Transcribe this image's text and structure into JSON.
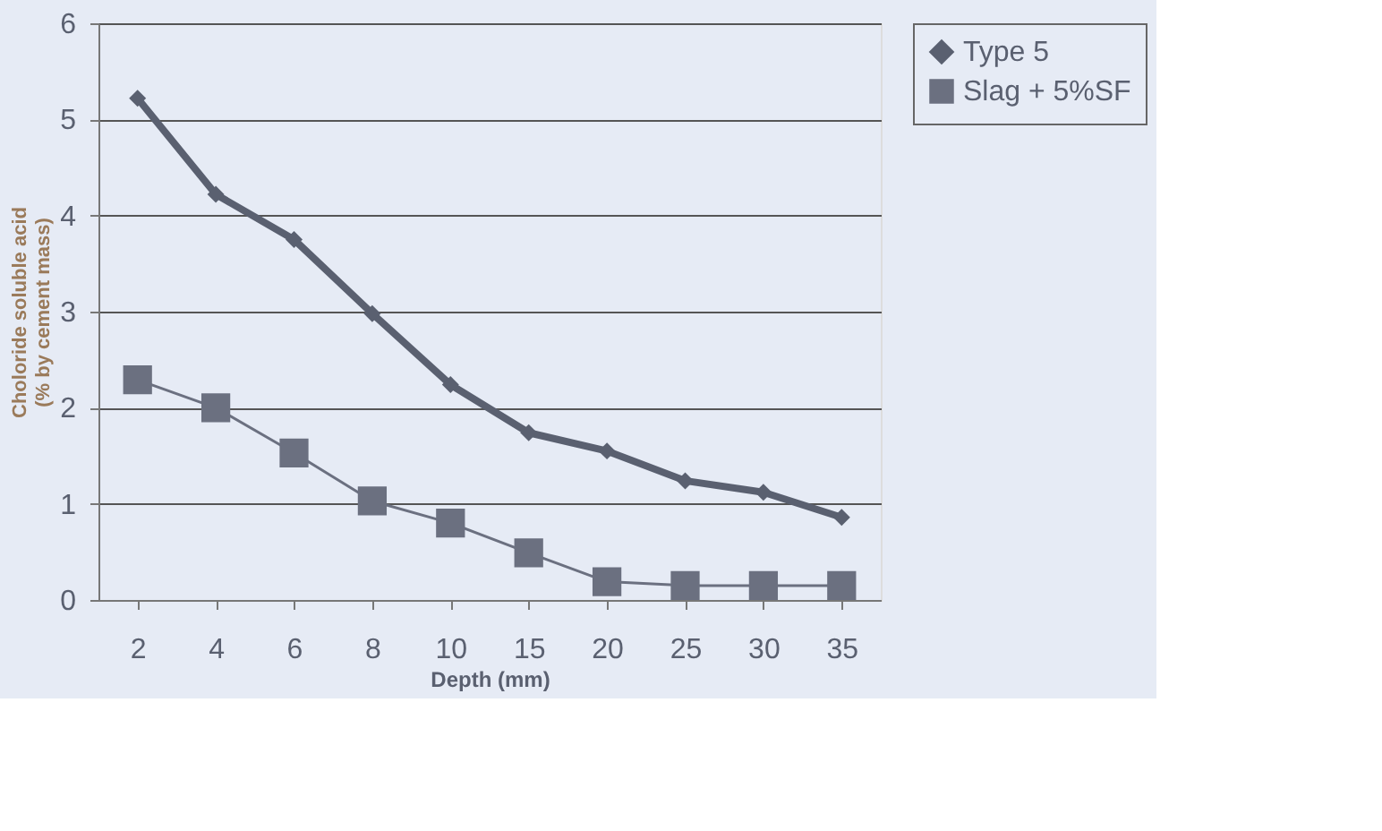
{
  "chart_data": {
    "type": "line",
    "xlabel": "Depth (mm)",
    "ylabel": "Choloride soluble acid\n(% by cement mass)",
    "categories": [
      "2",
      "4",
      "6",
      "8",
      "10",
      "15",
      "20",
      "25",
      "30",
      "35"
    ],
    "series": [
      {
        "name": "Type 5",
        "color": "#5a6070",
        "marker": "diamond",
        "values": [
          5.22,
          4.22,
          3.75,
          2.98,
          2.24,
          1.74,
          1.55,
          1.24,
          1.12,
          0.86
        ]
      },
      {
        "name": "Slag + 5%SF",
        "color": "#6b7080",
        "marker": "square",
        "values": [
          2.29,
          2.0,
          1.53,
          1.03,
          0.8,
          0.49,
          0.19,
          0.15,
          0.15,
          0.15
        ]
      }
    ],
    "ylim": [
      0,
      6
    ],
    "yticks": [
      0,
      1,
      2,
      3,
      4,
      5,
      6
    ],
    "grid": "y",
    "legend": "right",
    "line_style": "solid"
  }
}
